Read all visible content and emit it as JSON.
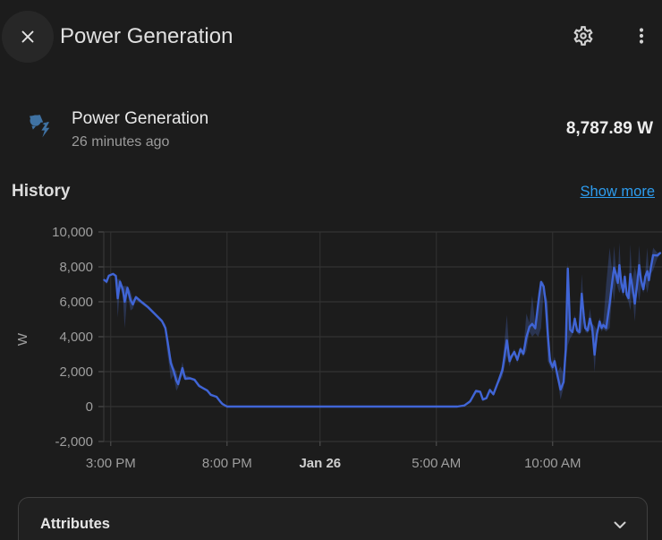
{
  "header": {
    "title": "Power Generation"
  },
  "entity": {
    "name": "Power Generation",
    "last_changed": "26 minutes ago",
    "state": "8,787.89 W",
    "icon": "solar-power-variant",
    "icon_color": "#3f72a3"
  },
  "history": {
    "heading": "History",
    "show_more_label": "Show more",
    "link_color": "#2d9cee"
  },
  "attributes": {
    "heading": "Attributes"
  },
  "colors": {
    "background": "#1c1c1c",
    "primary_text": "#e1e1e1",
    "secondary_text": "#9b9b9b",
    "grid": "#383838",
    "accent_link": "#2d9cee",
    "line": "#4065d6",
    "band": "rgba(77,108,201,0.30)"
  },
  "chart_data": {
    "type": "line",
    "title": "Power Generation history (24 h window)",
    "unit": "W",
    "ylabel": "W",
    "ylim": [
      -2000,
      10000
    ],
    "grid": true,
    "legend": "none",
    "y_ticks": [
      {
        "value": -2000,
        "label": "-2,000"
      },
      {
        "value": 0,
        "label": "0"
      },
      {
        "value": 2000,
        "label": "2,000"
      },
      {
        "value": 4000,
        "label": "4,000"
      },
      {
        "value": 6000,
        "label": "6,000"
      },
      {
        "value": 8000,
        "label": "8,000"
      },
      {
        "value": 10000,
        "label": "10,000"
      }
    ],
    "x_span_hours": 24,
    "x_ticks": [
      {
        "hour": 0.3,
        "label": "3:00 PM",
        "bold": false
      },
      {
        "hour": 5.3,
        "label": "8:00 PM",
        "bold": false
      },
      {
        "hour": 9.3,
        "label": "Jan 26",
        "bold": true
      },
      {
        "hour": 14.3,
        "label": "5:00 AM",
        "bold": false
      },
      {
        "hour": 19.3,
        "label": "10:00 AM",
        "bold": false
      }
    ],
    "series": [
      {
        "name": "Power Generation",
        "color": "#4065d6",
        "band_color": "rgba(77,108,201,0.30)",
        "points_format": [
          "hours_from_window_start",
          "mean_w",
          "min_w",
          "max_w"
        ],
        "points": [
          [
            0.02,
            7250,
            7250,
            7250
          ],
          [
            0.12,
            7150,
            7000,
            7250
          ],
          [
            0.22,
            7500,
            7500,
            7500
          ],
          [
            0.4,
            7600,
            7600,
            7600
          ],
          [
            0.52,
            7480,
            7480,
            7480
          ],
          [
            0.6,
            6200,
            5100,
            7300
          ],
          [
            0.7,
            7150,
            6800,
            7300
          ],
          [
            0.82,
            6700,
            6400,
            6900
          ],
          [
            0.9,
            6000,
            4480,
            6900
          ],
          [
            1.02,
            6800,
            6500,
            6900
          ],
          [
            1.15,
            6100,
            5500,
            6600
          ],
          [
            1.25,
            5850,
            5600,
            6100
          ],
          [
            1.38,
            6270,
            6100,
            6350
          ],
          [
            1.6,
            6015,
            5900,
            6100
          ],
          [
            1.9,
            5690,
            5600,
            5800
          ],
          [
            2.2,
            5300,
            5200,
            5400
          ],
          [
            2.5,
            4900,
            4800,
            5000
          ],
          [
            2.65,
            4500,
            4300,
            4700
          ],
          [
            2.72,
            3900,
            3200,
            4300
          ],
          [
            2.8,
            3230,
            2460,
            3700
          ],
          [
            2.88,
            2500,
            1540,
            2900
          ],
          [
            3.0,
            2050,
            1800,
            2300
          ],
          [
            3.12,
            1500,
            900,
            2000
          ],
          [
            3.2,
            1280,
            1100,
            1600
          ],
          [
            3.3,
            1800,
            1600,
            2000
          ],
          [
            3.38,
            2200,
            1800,
            2560
          ],
          [
            3.5,
            1600,
            1500,
            1800
          ],
          [
            3.7,
            1620,
            1550,
            1700
          ],
          [
            3.9,
            1540,
            1450,
            1600
          ],
          [
            4.1,
            1180,
            1100,
            1300
          ],
          [
            4.3,
            1030,
            980,
            1100
          ],
          [
            4.45,
            920,
            860,
            980
          ],
          [
            4.6,
            670,
            600,
            760
          ],
          [
            4.85,
            560,
            520,
            600
          ],
          [
            5.0,
            300,
            200,
            400
          ],
          [
            5.1,
            150,
            80,
            220
          ],
          [
            5.3,
            0,
            0,
            0
          ],
          [
            7.0,
            0,
            0,
            0
          ],
          [
            9.0,
            0,
            0,
            0
          ],
          [
            11.0,
            0,
            0,
            0
          ],
          [
            13.0,
            0,
            0,
            0
          ],
          [
            15.2,
            0,
            0,
            0
          ],
          [
            15.5,
            60,
            0,
            120
          ],
          [
            15.75,
            300,
            200,
            400
          ],
          [
            16.0,
            890,
            750,
            980
          ],
          [
            16.18,
            850,
            780,
            920
          ],
          [
            16.3,
            400,
            320,
            500
          ],
          [
            16.45,
            480,
            420,
            560
          ],
          [
            16.6,
            950,
            850,
            1050
          ],
          [
            16.75,
            700,
            620,
            800
          ],
          [
            16.95,
            1400,
            1250,
            1550
          ],
          [
            17.14,
            2085,
            1700,
            2400
          ],
          [
            17.33,
            3795,
            2900,
            5250
          ],
          [
            17.45,
            2600,
            2300,
            2900
          ],
          [
            17.53,
            2870,
            2700,
            3000
          ],
          [
            17.65,
            3128,
            2950,
            3300
          ],
          [
            17.78,
            2680,
            2500,
            2850
          ],
          [
            17.91,
            3280,
            3100,
            3450
          ],
          [
            18.04,
            3025,
            2850,
            3200
          ],
          [
            18.17,
            3965,
            3200,
            5330
          ],
          [
            18.3,
            4565,
            4300,
            4800
          ],
          [
            18.42,
            4735,
            4000,
            6360
          ],
          [
            18.55,
            4480,
            4200,
            4700
          ],
          [
            18.68,
            5930,
            4000,
            6500
          ],
          [
            18.8,
            7130,
            4500,
            7250
          ],
          [
            18.91,
            6875,
            6600,
            7100
          ],
          [
            19.0,
            5945,
            5500,
            6400
          ],
          [
            19.09,
            4145,
            2600,
            6000
          ],
          [
            19.19,
            2600,
            2300,
            2900
          ],
          [
            19.3,
            2255,
            2000,
            2500
          ],
          [
            19.38,
            2600,
            2350,
            2850
          ],
          [
            19.51,
            1740,
            1500,
            2000
          ],
          [
            19.64,
            975,
            400,
            2300
          ],
          [
            19.77,
            1400,
            1100,
            1800
          ],
          [
            19.86,
            3280,
            2500,
            4100
          ],
          [
            19.95,
            7900,
            3500,
            8300
          ],
          [
            20.05,
            4400,
            3900,
            5000
          ],
          [
            20.15,
            4260,
            4100,
            4450
          ],
          [
            20.25,
            5030,
            4800,
            5250
          ],
          [
            20.35,
            4360,
            4200,
            4550
          ],
          [
            20.45,
            4260,
            4100,
            4400
          ],
          [
            20.55,
            6460,
            4300,
            7590
          ],
          [
            20.64,
            5180,
            4900,
            5500
          ],
          [
            20.7,
            4500,
            4300,
            4700
          ],
          [
            20.8,
            4360,
            4200,
            4550
          ],
          [
            20.9,
            5030,
            4400,
            5600
          ],
          [
            21.0,
            4500,
            4300,
            4750
          ],
          [
            21.1,
            2970,
            1950,
            4600
          ],
          [
            21.2,
            4150,
            3900,
            4400
          ],
          [
            21.32,
            4870,
            4600,
            5100
          ],
          [
            21.4,
            4500,
            4300,
            4700
          ],
          [
            21.48,
            4670,
            4450,
            4900
          ],
          [
            21.6,
            4500,
            4300,
            7000
          ],
          [
            21.75,
            5900,
            4500,
            9100
          ],
          [
            21.87,
            7230,
            6800,
            7600
          ],
          [
            21.94,
            7950,
            6000,
            9200
          ],
          [
            22.02,
            7590,
            7200,
            7900
          ],
          [
            22.1,
            7080,
            6800,
            7400
          ],
          [
            22.17,
            8100,
            6500,
            9380
          ],
          [
            22.25,
            7080,
            6800,
            7400
          ],
          [
            22.33,
            6560,
            6300,
            6800
          ],
          [
            22.4,
            7440,
            7100,
            7700
          ],
          [
            22.48,
            6410,
            6200,
            6700
          ],
          [
            22.56,
            6210,
            6000,
            6450
          ],
          [
            22.64,
            7590,
            5500,
            9280
          ],
          [
            22.72,
            6920,
            6600,
            7200
          ],
          [
            22.83,
            5900,
            4870,
            8000
          ],
          [
            22.94,
            7080,
            6800,
            7400
          ],
          [
            23.02,
            8100,
            6000,
            9230
          ],
          [
            23.1,
            7230,
            6900,
            7550
          ],
          [
            23.2,
            6720,
            6500,
            7000
          ],
          [
            23.28,
            7440,
            7100,
            7700
          ],
          [
            23.37,
            7750,
            6500,
            9100
          ],
          [
            23.44,
            7230,
            7000,
            7500
          ],
          [
            23.52,
            7950,
            7600,
            8300
          ],
          [
            23.62,
            8670,
            7800,
            9100
          ],
          [
            23.8,
            8650,
            8500,
            8800
          ],
          [
            23.92,
            8788,
            8700,
            8850
          ]
        ]
      }
    ]
  }
}
